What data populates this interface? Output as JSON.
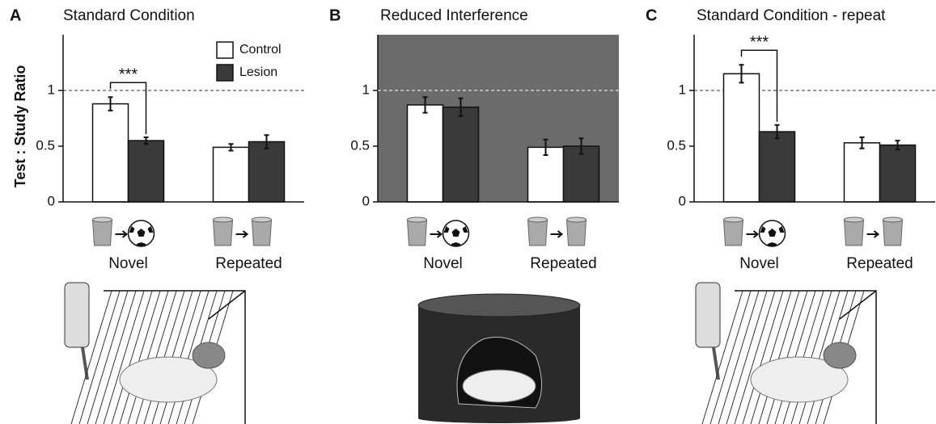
{
  "chart_data": [
    {
      "type": "bar",
      "label": "A",
      "title": "Standard Condition",
      "y_label": "Test : Study Ratio",
      "categories": [
        "Novel",
        "Repeated"
      ],
      "series": [
        {
          "name": "Control",
          "color": "#ffffff",
          "values": [
            0.88,
            0.49
          ],
          "errors": [
            0.06,
            0.03
          ]
        },
        {
          "name": "Lesion",
          "color": "#3a3a3a",
          "values": [
            0.55,
            0.54
          ],
          "errors": [
            0.03,
            0.06
          ]
        }
      ],
      "ylim": [
        0,
        1.5
      ],
      "yticks": [
        0,
        0.5,
        1
      ],
      "reference_line": 1,
      "legend": "upper right",
      "significance": "***",
      "background": "#ffffff"
    },
    {
      "type": "bar",
      "label": "B",
      "title": "Reduced Interference",
      "categories": [
        "Novel",
        "Repeated"
      ],
      "series": [
        {
          "color": "#ffffff",
          "values": [
            0.87,
            0.49
          ],
          "errors": [
            0.07,
            0.07
          ]
        },
        {
          "color": "#3a3a3a",
          "values": [
            0.85,
            0.5
          ],
          "errors": [
            0.08,
            0.07
          ]
        }
      ],
      "ylim": [
        0,
        1.5
      ],
      "yticks": [
        0,
        0.5,
        1
      ],
      "reference_line": 1,
      "background": "#6b6b6b"
    },
    {
      "type": "bar",
      "label": "C",
      "title": "Standard Condition - repeat",
      "categories": [
        "Novel",
        "Repeated"
      ],
      "series": [
        {
          "color": "#ffffff",
          "values": [
            1.15,
            0.53
          ],
          "errors": [
            0.08,
            0.05
          ]
        },
        {
          "color": "#3a3a3a",
          "values": [
            0.63,
            0.51
          ],
          "errors": [
            0.06,
            0.04
          ]
        }
      ],
      "ylim": [
        0,
        1.5
      ],
      "yticks": [
        0,
        0.5,
        1
      ],
      "reference_line": 1,
      "significance": "***",
      "background": "#ffffff"
    }
  ]
}
